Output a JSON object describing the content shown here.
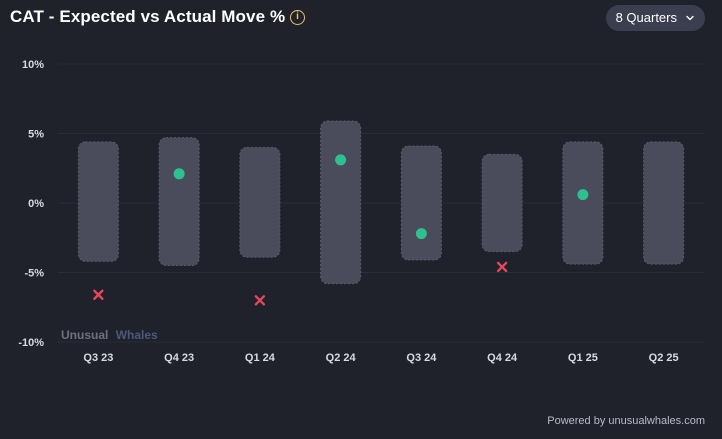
{
  "header": {
    "title": "CAT - Expected vs Actual Move %",
    "info_icon": "info-circle-icon",
    "range_select": {
      "selected": "8 Quarters",
      "icon": "chevron-down-icon"
    }
  },
  "footer": {
    "powered_by": "Powered by unusualwhales.com"
  },
  "chart_data": {
    "type": "scatter",
    "watermark": [
      "Unusual",
      "Whales"
    ],
    "categories": [
      "Q3 23",
      "Q4 23",
      "Q1 24",
      "Q2 24",
      "Q3 24",
      "Q4 24",
      "Q1 25",
      "Q2 25"
    ],
    "y_ticks": [
      10,
      5,
      0,
      -5,
      -10
    ],
    "y_tick_labels": [
      "10%",
      "5%",
      "0%",
      "-5%",
      "-10%"
    ],
    "ylim": [
      -10,
      10
    ],
    "grid": true,
    "series": [
      {
        "kind": "range",
        "lows": [
          -4.2,
          -4.5,
          -3.9,
          -5.8,
          -4.1,
          -3.5,
          -4.4,
          -4.4
        ],
        "highs": [
          4.4,
          4.7,
          4.0,
          5.9,
          4.1,
          3.5,
          4.4,
          4.4
        ]
      },
      {
        "kind": "actual",
        "values": [
          -6.6,
          2.1,
          -7.0,
          3.1,
          -2.2,
          -4.6,
          0.6,
          null
        ],
        "outside_expected": [
          true,
          false,
          true,
          false,
          false,
          true,
          false,
          false
        ]
      }
    ],
    "colors": {
      "range": "#4a4c5c",
      "inside": "#2ec08f",
      "outside": "#e5485d",
      "grid": "#2a2d38",
      "axis_text": "#d8dae2",
      "watermark_a": "#6e7280",
      "watermark_b": "#4d5a78"
    }
  }
}
